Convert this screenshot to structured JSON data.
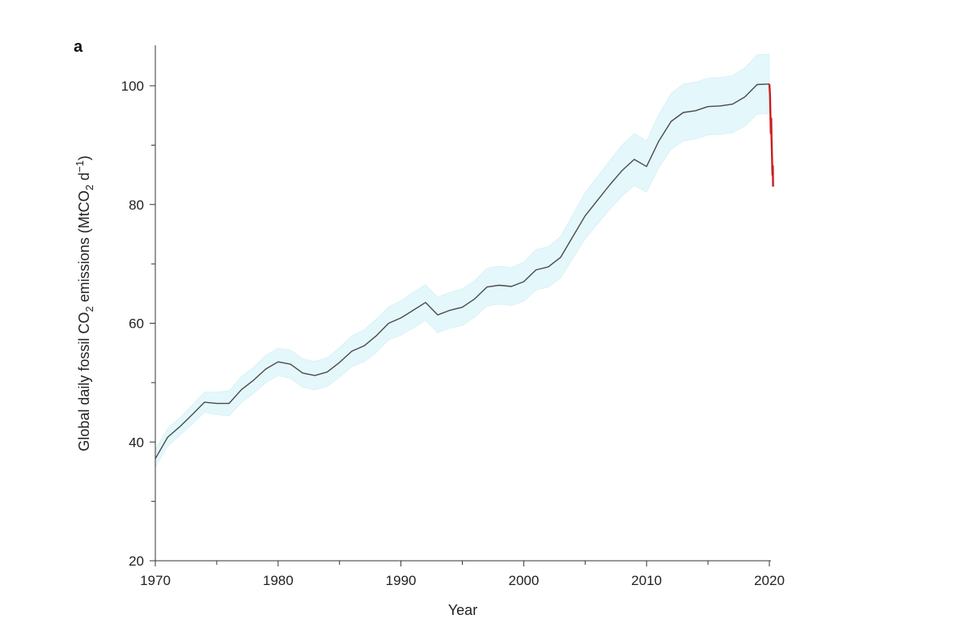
{
  "chart_data": {
    "type": "line",
    "panel_label": "a",
    "xlabel": "Year",
    "ylabel": {
      "parts": [
        {
          "t": "Global daily fossil CO",
          "s": "n"
        },
        {
          "t": "2",
          "s": "sub"
        },
        {
          "t": " emissions (MtCO",
          "s": "n"
        },
        {
          "t": "2",
          "s": "sub"
        },
        {
          "t": " d",
          "s": "n"
        },
        {
          "t": "−1",
          "s": "sup"
        },
        {
          "t": ")",
          "s": "n"
        }
      ]
    },
    "xlim": [
      1970,
      2020.4
    ],
    "ylim": [
      20,
      107
    ],
    "x_ticks": [
      1970,
      1980,
      1990,
      2000,
      2010,
      2020
    ],
    "x_tick_labels": [
      "1970",
      "1980",
      "1990",
      "2000",
      "2010",
      "2020"
    ],
    "y_ticks": [
      20,
      40,
      60,
      80,
      100
    ],
    "y_tick_labels": [
      "20",
      "40",
      "60",
      "80",
      "100"
    ],
    "colors": {
      "line": "#4a4a4a",
      "band": "#e4f7fb",
      "band_edge": "#cdeef5",
      "covid": "#c81e1e",
      "axis": "#333333"
    },
    "series": [
      {
        "kind": "line_with_band",
        "x": [
          1970,
          1971,
          1972,
          1973,
          1974,
          1975,
          1976,
          1977,
          1978,
          1979,
          1980,
          1981,
          1982,
          1983,
          1984,
          1985,
          1986,
          1987,
          1988,
          1989,
          1990,
          1991,
          1992,
          1993,
          1994,
          1995,
          1996,
          1997,
          1998,
          1999,
          2000,
          2001,
          2002,
          2003,
          2004,
          2005,
          2006,
          2007,
          2008,
          2009,
          2010,
          2011,
          2012,
          2013,
          2014,
          2015,
          2016,
          2017,
          2018,
          2019,
          2020
        ],
        "y": [
          37.2,
          40.8,
          42.6,
          44.6,
          46.7,
          46.5,
          46.5,
          48.8,
          50.4,
          52.3,
          53.5,
          53.1,
          51.6,
          51.2,
          51.8,
          53.4,
          55.3,
          56.2,
          57.9,
          60.0,
          60.9,
          62.2,
          63.5,
          61.4,
          62.2,
          62.7,
          64.1,
          66.1,
          66.4,
          66.2,
          67.0,
          69.0,
          69.5,
          71.1,
          74.6,
          78.1,
          80.7,
          83.3,
          85.7,
          87.6,
          86.4,
          90.7,
          94.0,
          95.5,
          95.8,
          96.5,
          96.6,
          96.9,
          98.1,
          100.2,
          100.3
        ],
        "band_lower": [
          35.7,
          39.3,
          41.1,
          43.0,
          45.0,
          44.6,
          44.4,
          46.6,
          48.2,
          50.0,
          51.2,
          50.7,
          49.2,
          48.8,
          49.4,
          50.9,
          52.7,
          53.5,
          55.1,
          57.2,
          58.0,
          59.2,
          60.5,
          58.4,
          59.2,
          59.6,
          61.0,
          62.9,
          63.2,
          63.0,
          63.7,
          65.6,
          66.1,
          67.6,
          70.9,
          74.2,
          76.7,
          79.2,
          81.4,
          83.2,
          82.1,
          86.2,
          89.3,
          90.7,
          91.0,
          91.7,
          91.8,
          92.1,
          93.2,
          95.2,
          95.3
        ],
        "band_upper": [
          38.7,
          42.3,
          44.1,
          46.2,
          48.4,
          48.4,
          48.6,
          51.0,
          52.6,
          54.6,
          55.8,
          55.5,
          54.0,
          53.6,
          54.2,
          55.9,
          57.9,
          58.9,
          60.7,
          62.8,
          63.8,
          65.2,
          66.5,
          64.4,
          65.2,
          65.8,
          67.2,
          69.3,
          69.6,
          69.4,
          70.3,
          72.4,
          72.9,
          74.6,
          78.3,
          82.0,
          84.7,
          87.4,
          90.0,
          92.0,
          90.7,
          95.2,
          98.7,
          100.3,
          100.6,
          101.3,
          101.4,
          101.7,
          103.0,
          105.2,
          105.3
        ]
      },
      {
        "kind": "covid_drop",
        "x": [
          2020.0,
          2020.05,
          2020.08,
          2020.12,
          2020.15,
          2020.18,
          2020.22,
          2020.25,
          2020.28,
          2020.3
        ],
        "y": [
          100.3,
          98.5,
          96.0,
          92.0,
          94.5,
          91.0,
          88.0,
          85.0,
          86.5,
          83.0
        ]
      }
    ]
  }
}
